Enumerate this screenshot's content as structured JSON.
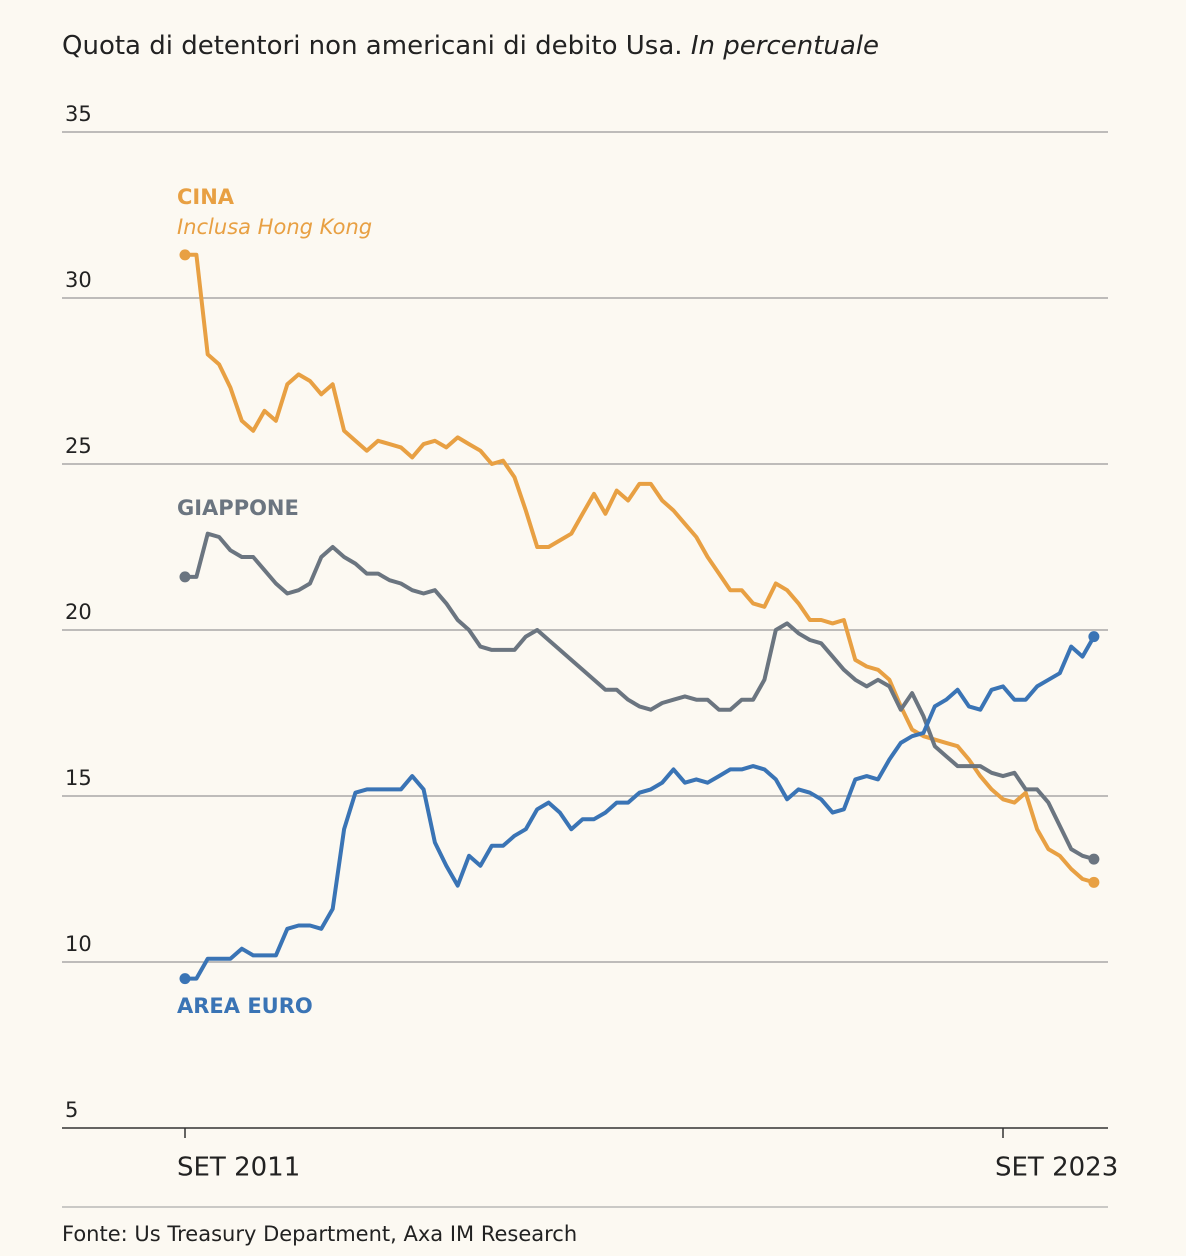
{
  "chart_data": {
    "type": "line",
    "title": "Quota di detentori non americani di debito Usa.",
    "subtitle": "In percentuale",
    "source": "Fonte: Us Treasury Department, Axa IM Research",
    "categories": [
      "SET 2011",
      null,
      null,
      null,
      null,
      null,
      null,
      null,
      null,
      null,
      null,
      null,
      null,
      null,
      null,
      null,
      null,
      null,
      null,
      null,
      null,
      null,
      null,
      null,
      null,
      null,
      null,
      null,
      null,
      null,
      null,
      null,
      null,
      null,
      null,
      null,
      null,
      null,
      null,
      null,
      null,
      null,
      null,
      null,
      null,
      null,
      null,
      null,
      null,
      null,
      null,
      null,
      null,
      null,
      null,
      null,
      null,
      null,
      null,
      null,
      null,
      null,
      null,
      null,
      null,
      null,
      null,
      null,
      null,
      null,
      null,
      null,
      "SET 2023",
      null,
      null,
      null,
      null,
      null,
      null,
      null,
      null
    ],
    "ylim": [
      5,
      35
    ],
    "yticks": [
      5,
      10,
      15,
      20,
      25,
      30,
      35
    ],
    "grid": true,
    "series": [
      {
        "name": "CINA",
        "sublabel": "Inclusa Hong Kong",
        "color": "#e8a043",
        "values": [
          31.3,
          31.3,
          28.3,
          28.0,
          27.3,
          26.3,
          26.0,
          26.6,
          26.3,
          27.4,
          27.7,
          27.5,
          27.1,
          27.4,
          26.0,
          25.7,
          25.4,
          25.7,
          25.6,
          25.5,
          25.2,
          25.6,
          25.7,
          25.5,
          25.8,
          25.6,
          25.4,
          25.0,
          25.1,
          24.6,
          23.6,
          22.5,
          22.5,
          22.7,
          22.9,
          23.5,
          24.1,
          23.5,
          24.2,
          23.9,
          24.4,
          24.4,
          23.9,
          23.6,
          23.2,
          22.8,
          22.2,
          21.7,
          21.2,
          21.2,
          20.8,
          20.7,
          21.4,
          21.2,
          20.8,
          20.3,
          20.3,
          20.2,
          20.3,
          19.1,
          18.9,
          18.8,
          18.5,
          17.7,
          17.0,
          16.8,
          16.7,
          16.6,
          16.5,
          16.1,
          15.6,
          15.2,
          14.9,
          14.8,
          15.1,
          14.0,
          13.4,
          13.2,
          12.8,
          12.5,
          12.4
        ]
      },
      {
        "name": "GIAPPONE",
        "color": "#6b7580",
        "values": [
          21.6,
          21.6,
          22.9,
          22.8,
          22.4,
          22.2,
          22.2,
          21.8,
          21.4,
          21.1,
          21.2,
          21.4,
          22.2,
          22.5,
          22.2,
          22.0,
          21.7,
          21.7,
          21.5,
          21.4,
          21.2,
          21.1,
          21.2,
          20.8,
          20.3,
          20.0,
          19.5,
          19.4,
          19.4,
          19.4,
          19.8,
          20.0,
          19.7,
          19.4,
          19.1,
          18.8,
          18.5,
          18.2,
          18.2,
          17.9,
          17.7,
          17.6,
          17.8,
          17.9,
          18.0,
          17.9,
          17.9,
          17.6,
          17.6,
          17.9,
          17.9,
          18.5,
          20.0,
          20.2,
          19.9,
          19.7,
          19.6,
          19.2,
          18.8,
          18.5,
          18.3,
          18.5,
          18.3,
          17.6,
          18.1,
          17.4,
          16.5,
          16.2,
          15.9,
          15.9,
          15.9,
          15.7,
          15.6,
          15.7,
          15.2,
          15.2,
          14.8,
          14.1,
          13.4,
          13.2,
          13.1
        ]
      },
      {
        "name": "AREA EURO",
        "color": "#3a74b5",
        "values": [
          9.5,
          9.5,
          10.1,
          10.1,
          10.1,
          10.4,
          10.2,
          10.2,
          10.2,
          11.0,
          11.1,
          11.1,
          11.0,
          11.6,
          14.0,
          15.1,
          15.2,
          15.2,
          15.2,
          15.2,
          15.6,
          15.2,
          13.6,
          12.9,
          12.3,
          13.2,
          12.9,
          13.5,
          13.5,
          13.8,
          14.0,
          14.6,
          14.8,
          14.5,
          14.0,
          14.3,
          14.3,
          14.5,
          14.8,
          14.8,
          15.1,
          15.2,
          15.4,
          15.8,
          15.4,
          15.5,
          15.4,
          15.6,
          15.8,
          15.8,
          15.9,
          15.8,
          15.5,
          14.9,
          15.2,
          15.1,
          14.9,
          14.5,
          14.6,
          15.5,
          15.6,
          15.5,
          16.1,
          16.6,
          16.8,
          16.9,
          17.7,
          17.9,
          18.2,
          17.7,
          17.6,
          18.2,
          18.3,
          17.9,
          17.9,
          18.3,
          18.5,
          18.7,
          19.5,
          19.2,
          19.8
        ]
      }
    ]
  }
}
